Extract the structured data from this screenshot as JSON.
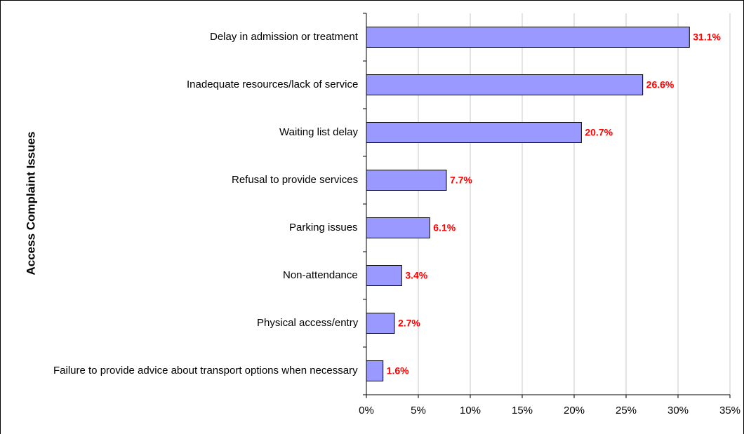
{
  "chart_data": {
    "type": "bar",
    "orientation": "horizontal",
    "y_axis_title": "Access Complaint Issues",
    "categories": [
      "Delay in admission or treatment",
      "Inadequate resources/lack of service",
      "Waiting list delay",
      "Refusal to provide services",
      "Parking issues",
      "Non-attendance",
      "Physical access/entry",
      "Failure to provide advice about transport options when necessary"
    ],
    "values": [
      31.1,
      26.6,
      20.7,
      7.7,
      6.1,
      3.4,
      2.7,
      1.6
    ],
    "value_labels": [
      "31.1%",
      "26.6%",
      "20.7%",
      "7.7%",
      "6.1%",
      "3.4%",
      "2.7%",
      "1.6%"
    ],
    "color": "#9999ff",
    "label_color": "#ff0000",
    "xlim": [
      0,
      35
    ],
    "xticks": [
      {
        "value": 0,
        "label": "0%"
      },
      {
        "value": 5,
        "label": "5%"
      },
      {
        "value": 10,
        "label": "10%"
      },
      {
        "value": 15,
        "label": "15%"
      },
      {
        "value": 20,
        "label": "20%"
      },
      {
        "value": 25,
        "label": "25%"
      },
      {
        "value": 30,
        "label": "30%"
      },
      {
        "value": 35,
        "label": "35%"
      }
    ],
    "grid": true
  }
}
